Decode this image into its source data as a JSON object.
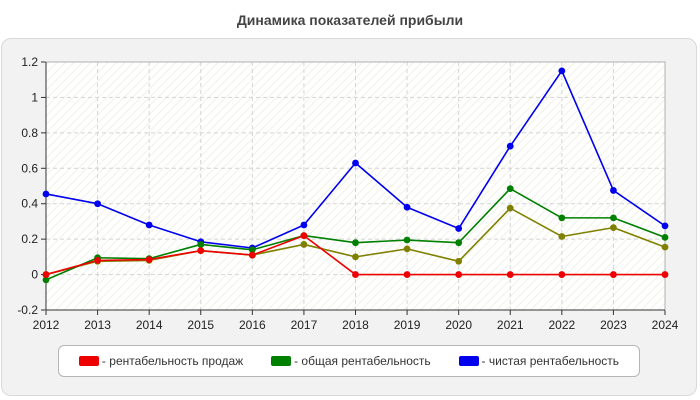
{
  "chart_data": {
    "type": "line",
    "title": "Динамика показателей прибыли",
    "x": [
      2012,
      2013,
      2014,
      2015,
      2016,
      2017,
      2018,
      2019,
      2020,
      2021,
      2022,
      2023,
      2024
    ],
    "ylim": [
      -0.2,
      1.2
    ],
    "yticks": [
      -0.2,
      0,
      0.2,
      0.4,
      0.6,
      0.8,
      1,
      1.2
    ],
    "ytick_labels": [
      "-0.2",
      "0",
      "0.2",
      "0.4",
      "0.6",
      "0.8",
      "1",
      "1.2"
    ],
    "grid": true,
    "legend_position": "bottom",
    "series": [
      {
        "name": "рентабельность продаж",
        "color": "#ee0000",
        "values": [
          0.0,
          0.08,
          0.085,
          0.135,
          0.11,
          0.22,
          0.0,
          0.0,
          0.0,
          0.0,
          0.0,
          0.0,
          0.0
        ]
      },
      {
        "name": "общая рентабельность",
        "color": "#008000",
        "values": [
          -0.03,
          0.095,
          0.09,
          0.17,
          0.14,
          0.22,
          0.18,
          0.195,
          0.18,
          0.485,
          0.32,
          0.32,
          0.21
        ]
      },
      {
        "name": "чистая рентабельность",
        "color": "#0000ee",
        "values": [
          0.455,
          0.4,
          0.28,
          0.185,
          0.15,
          0.28,
          0.63,
          0.38,
          0.26,
          0.725,
          1.15,
          0.475,
          0.275
        ]
      },
      {
        "name": "",
        "color": "#808000",
        "values": [
          0.0,
          0.075,
          0.08,
          0.135,
          0.11,
          0.17,
          0.1,
          0.145,
          0.075,
          0.375,
          0.215,
          0.265,
          0.155
        ]
      }
    ]
  }
}
